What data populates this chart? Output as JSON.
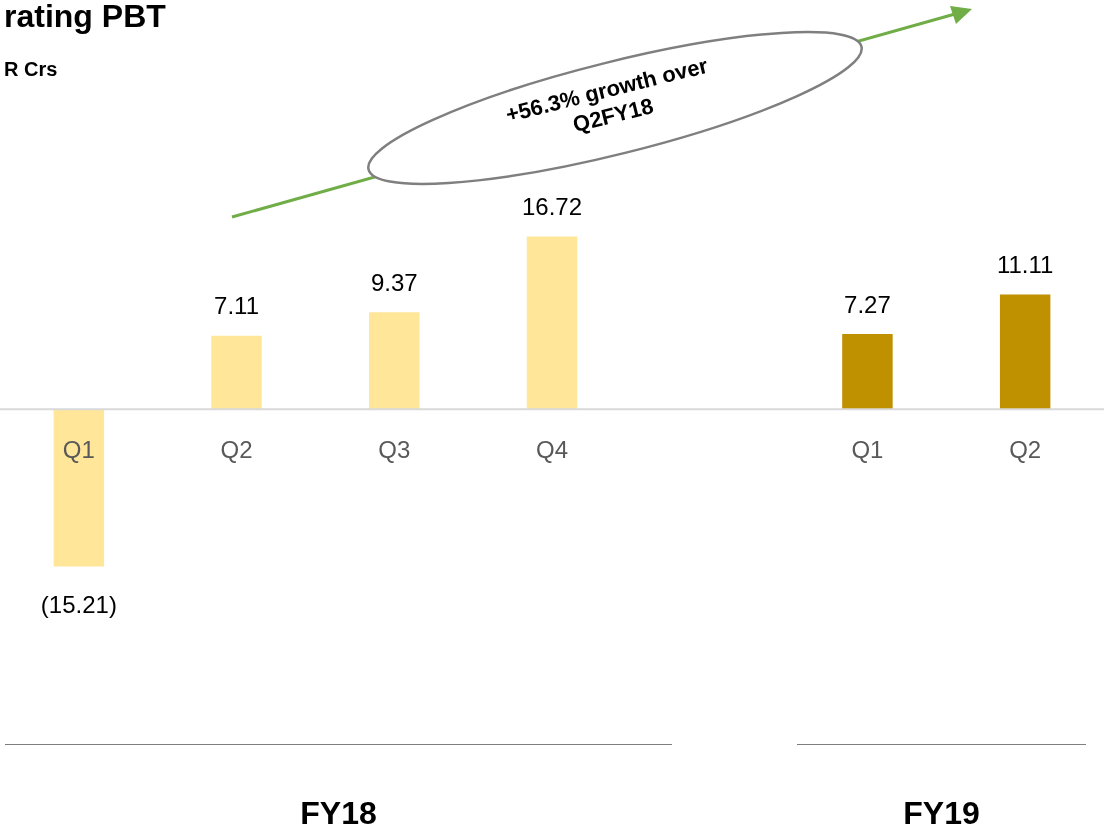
{
  "chart_data": {
    "type": "bar",
    "title": "rating PBT",
    "subtitle": "R Crs",
    "categories": [
      "Q1",
      "Q2",
      "Q3",
      "Q4",
      null,
      "Q1",
      "Q2"
    ],
    "values": [
      -15.21,
      7.11,
      9.37,
      16.72,
      null,
      7.27,
      11.11
    ],
    "colors": [
      "#ffe699",
      "#ffe699",
      "#ffe699",
      "#ffe699",
      "#ffe699",
      "#bf9000",
      "#bf9000"
    ],
    "value_labels": [
      "(15.21)",
      "7.11",
      "9.37",
      "16.72",
      null,
      "7.27",
      "11.11"
    ],
    "annotations": [
      "+56.3% growth over Q2FY18",
      "FY18",
      "FY19"
    ],
    "legend": false
  }
}
